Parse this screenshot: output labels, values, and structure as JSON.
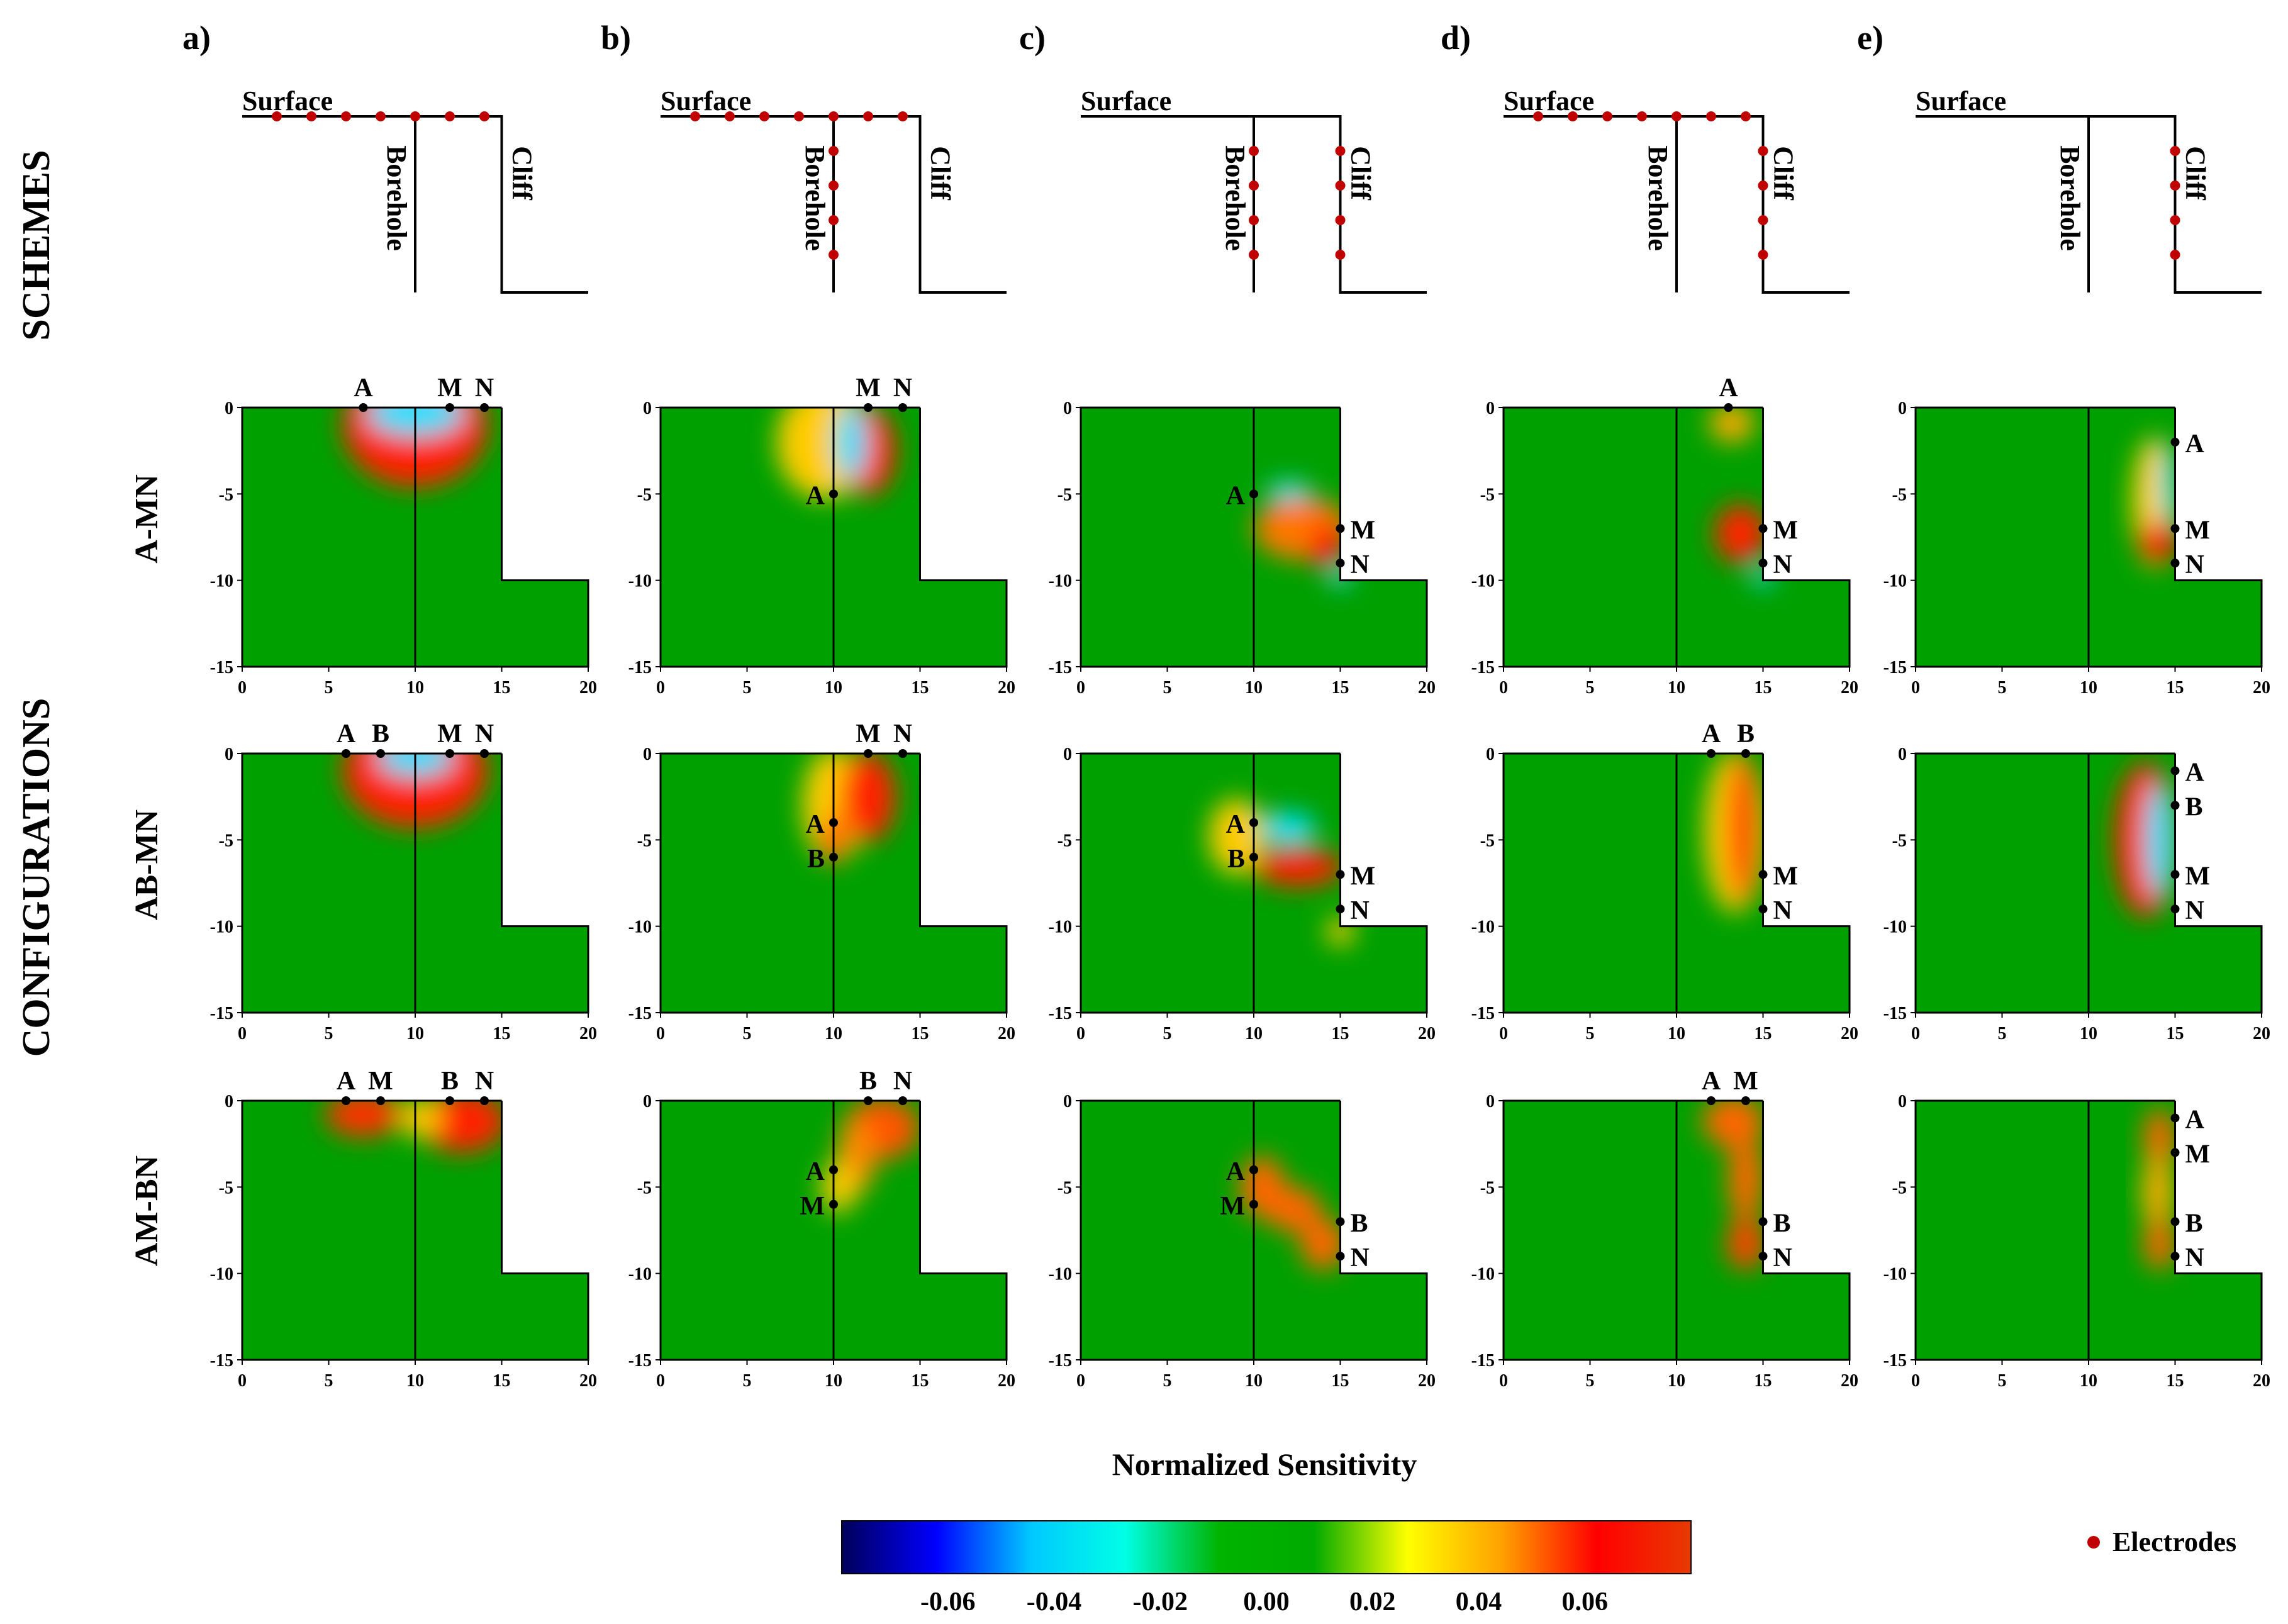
{
  "figure": {
    "panel_labels": [
      "a)",
      "b)",
      "c)",
      "d)",
      "e)"
    ],
    "row_titles": {
      "schemes": "SCHEMES",
      "configurations": "CONFIGURATIONS"
    },
    "config_rows": [
      "A-MN",
      "AB-MN",
      "AM-BN"
    ],
    "scheme_labels": {
      "surface": "Surface",
      "borehole": "Borehole",
      "cliff": "Cliff"
    },
    "schemes": [
      {
        "surface": [
          2,
          4,
          6,
          8,
          10,
          12,
          14
        ],
        "borehole": [],
        "cliff": []
      },
      {
        "surface": [
          2,
          4,
          6,
          8,
          10,
          12,
          14
        ],
        "borehole": [
          2,
          4,
          6,
          8
        ],
        "cliff": []
      },
      {
        "surface": [],
        "borehole": [
          2,
          4,
          6,
          8
        ],
        "cliff": [
          2,
          4,
          6,
          8
        ]
      },
      {
        "surface": [
          2,
          4,
          6,
          8,
          10,
          12,
          14
        ],
        "borehole": [],
        "cliff": [
          2,
          4,
          6,
          8
        ]
      },
      {
        "surface": [],
        "borehole": [],
        "cliff": [
          2,
          4,
          6,
          8
        ]
      }
    ],
    "colorbar": {
      "title": "Normalized Sensitivity",
      "ticks": [
        "-0.06",
        "-0.04",
        "-0.02",
        "0.00",
        "0.02",
        "0.04",
        "0.06"
      ],
      "colors": [
        "#00005a",
        "#0000ff",
        "#00c8ff",
        "#00ffe6",
        "#00b400",
        "#00aa00",
        "#ffff00",
        "#ffa000",
        "#ff0000",
        "#e83a00"
      ]
    },
    "legend": {
      "label": "Electrodes",
      "color": "#c00000"
    },
    "colors": {
      "background": "#00a000",
      "electrode": "#c00000",
      "line": "#000000"
    }
  },
  "chart_data": {
    "type": "heatmap",
    "title": "Normalized Sensitivity",
    "xlim": [
      0,
      20
    ],
    "ylim": [
      -15,
      0
    ],
    "xticks": [
      "0",
      "5",
      "10",
      "15",
      "20"
    ],
    "yticks": [
      "0",
      "-5",
      "-10",
      "-15"
    ],
    "panels": [
      {
        "row": "A-MN",
        "col": "a",
        "borehole_x": 10,
        "electrodes": [
          {
            "name": "A",
            "x": 7,
            "y": 0
          },
          {
            "name": "M",
            "x": 12,
            "y": 0
          },
          {
            "name": "N",
            "x": 14,
            "y": 0
          }
        ],
        "features": [
          {
            "cx": 10,
            "cy": -1,
            "rx": 4.2,
            "ry": 3.6,
            "color": "#ff2200"
          },
          {
            "cx": 10,
            "cy": -0.3,
            "rx": 2.8,
            "ry": 1.3,
            "color": "#00e0ff"
          }
        ]
      },
      {
        "row": "A-MN",
        "col": "b",
        "borehole_x": 10,
        "electrodes": [
          {
            "name": "A",
            "x": 10,
            "y": -5
          },
          {
            "name": "M",
            "x": 12,
            "y": 0
          },
          {
            "name": "N",
            "x": 14,
            "y": 0
          }
        ],
        "features": [
          {
            "cx": 9.5,
            "cy": -2,
            "rx": 2.8,
            "ry": 3.3,
            "color": "#ffcc00"
          },
          {
            "cx": 12,
            "cy": -2.5,
            "rx": 1.6,
            "ry": 2.6,
            "color": "#ff2200"
          },
          {
            "cx": 11,
            "cy": -2,
            "rx": 0.9,
            "ry": 2.2,
            "color": "#00e0ff"
          }
        ]
      },
      {
        "row": "A-MN",
        "col": "c",
        "borehole_x": 10,
        "electrodes": [
          {
            "name": "A",
            "x": 10,
            "y": -5
          },
          {
            "name": "M",
            "x": 15,
            "y": -7
          },
          {
            "name": "N",
            "x": 15,
            "y": -9
          }
        ],
        "features": [
          {
            "cx": 12.8,
            "cy": -7,
            "rx": 2.8,
            "ry": 1.8,
            "color": "#ff7700"
          },
          {
            "cx": 14.2,
            "cy": -8,
            "rx": 0.9,
            "ry": 1.3,
            "color": "#ff0000"
          },
          {
            "cx": 12,
            "cy": -4.8,
            "rx": 1.3,
            "ry": 0.5,
            "color": "#00e0ff"
          },
          {
            "cx": 15,
            "cy": -9.8,
            "rx": 0.6,
            "ry": 0.6,
            "color": "#00e0ff"
          }
        ]
      },
      {
        "row": "A-MN",
        "col": "d",
        "borehole_x": 10,
        "electrodes": [
          {
            "name": "A",
            "x": 13,
            "y": 0
          },
          {
            "name": "M",
            "x": 15,
            "y": -7
          },
          {
            "name": "N",
            "x": 15,
            "y": -9
          }
        ],
        "features": [
          {
            "cx": 13.2,
            "cy": -0.9,
            "rx": 1.3,
            "ry": 1.1,
            "color": "#ffaa00"
          },
          {
            "cx": 13.7,
            "cy": -7.3,
            "rx": 1.5,
            "ry": 1.7,
            "color": "#ff2200"
          },
          {
            "cx": 15,
            "cy": -9.8,
            "rx": 0.6,
            "ry": 0.6,
            "color": "#00e0ff"
          }
        ]
      },
      {
        "row": "A-MN",
        "col": "e",
        "borehole_x": 10,
        "electrodes": [
          {
            "name": "A",
            "x": 15,
            "y": -2
          },
          {
            "name": "M",
            "x": 15,
            "y": -7
          },
          {
            "name": "N",
            "x": 15,
            "y": -9
          }
        ],
        "features": [
          {
            "cx": 13.8,
            "cy": -5.5,
            "rx": 1.3,
            "ry": 3.8,
            "color": "#ffcc00"
          },
          {
            "cx": 14,
            "cy": -7.8,
            "rx": 1.1,
            "ry": 1.2,
            "color": "#ff0000"
          },
          {
            "cx": 14.6,
            "cy": -4.5,
            "rx": 0.4,
            "ry": 2.3,
            "color": "#00e0ff"
          }
        ]
      },
      {
        "row": "AB-MN",
        "col": "a",
        "borehole_x": 10,
        "electrodes": [
          {
            "name": "A",
            "x": 6,
            "y": 0
          },
          {
            "name": "B",
            "x": 8,
            "y": 0
          },
          {
            "name": "M",
            "x": 12,
            "y": 0
          },
          {
            "name": "N",
            "x": 14,
            "y": 0
          }
        ],
        "features": [
          {
            "cx": 10,
            "cy": -1,
            "rx": 4.2,
            "ry": 3.3,
            "color": "#ff2200"
          },
          {
            "cx": 10,
            "cy": -0.2,
            "rx": 2.2,
            "ry": 1.1,
            "color": "#00e0ff"
          }
        ]
      },
      {
        "row": "AB-MN",
        "col": "b",
        "borehole_x": 10,
        "electrodes": [
          {
            "name": "A",
            "x": 10,
            "y": -4
          },
          {
            "name": "B",
            "x": 10,
            "y": -6
          },
          {
            "name": "M",
            "x": 12,
            "y": 0
          },
          {
            "name": "N",
            "x": 14,
            "y": 0
          }
        ],
        "features": [
          {
            "cx": 10,
            "cy": -3,
            "rx": 1.8,
            "ry": 3.3,
            "color": "#ffcc00"
          },
          {
            "cx": 12,
            "cy": -2.5,
            "rx": 1.6,
            "ry": 2.6,
            "color": "#ff2200"
          },
          {
            "cx": 10,
            "cy": -5,
            "rx": 0.6,
            "ry": 1.4,
            "color": "#ff0000"
          }
        ]
      },
      {
        "row": "AB-MN",
        "col": "c",
        "borehole_x": 10,
        "electrodes": [
          {
            "name": "A",
            "x": 10,
            "y": -4
          },
          {
            "name": "B",
            "x": 10,
            "y": -6
          },
          {
            "name": "M",
            "x": 15,
            "y": -7
          },
          {
            "name": "N",
            "x": 15,
            "y": -9
          }
        ],
        "features": [
          {
            "cx": 9,
            "cy": -4.8,
            "rx": 1.6,
            "ry": 2.2,
            "color": "#ffcc00"
          },
          {
            "cx": 12.6,
            "cy": -6.6,
            "rx": 2.6,
            "ry": 1.1,
            "color": "#ff2200"
          },
          {
            "cx": 12,
            "cy": -4.3,
            "rx": 1.6,
            "ry": 0.9,
            "color": "#00e0ff"
          },
          {
            "cx": 15,
            "cy": -10.3,
            "rx": 0.8,
            "ry": 0.8,
            "color": "#ffcc00"
          }
        ]
      },
      {
        "row": "AB-MN",
        "col": "d",
        "borehole_x": 10,
        "electrodes": [
          {
            "name": "A",
            "x": 12,
            "y": 0
          },
          {
            "name": "B",
            "x": 14,
            "y": 0
          },
          {
            "name": "M",
            "x": 15,
            "y": -7
          },
          {
            "name": "N",
            "x": 15,
            "y": -9
          }
        ],
        "features": [
          {
            "cx": 13.4,
            "cy": -4.5,
            "rx": 1.8,
            "ry": 4.7,
            "color": "#ffcc00"
          },
          {
            "cx": 13.8,
            "cy": -4.3,
            "rx": 0.8,
            "ry": 4.3,
            "color": "#ff2200"
          }
        ]
      },
      {
        "row": "AB-MN",
        "col": "e",
        "borehole_x": 10,
        "electrodes": [
          {
            "name": "A",
            "x": 15,
            "y": -1
          },
          {
            "name": "B",
            "x": 15,
            "y": -3
          },
          {
            "name": "M",
            "x": 15,
            "y": -7
          },
          {
            "name": "N",
            "x": 15,
            "y": -9
          }
        ],
        "features": [
          {
            "cx": 13.3,
            "cy": -5,
            "rx": 1.8,
            "ry": 4.5,
            "color": "#ff2200"
          },
          {
            "cx": 14.1,
            "cy": -5,
            "rx": 0.8,
            "ry": 3.3,
            "color": "#00e0ff"
          }
        ]
      },
      {
        "row": "AM-BN",
        "col": "a",
        "borehole_x": 10,
        "electrodes": [
          {
            "name": "A",
            "x": 6,
            "y": 0
          },
          {
            "name": "M",
            "x": 8,
            "y": 0
          },
          {
            "name": "B",
            "x": 12,
            "y": 0
          },
          {
            "name": "N",
            "x": 14,
            "y": 0
          }
        ],
        "features": [
          {
            "cx": 7,
            "cy": -0.8,
            "rx": 2.2,
            "ry": 1.3,
            "color": "#ff3300"
          },
          {
            "cx": 12.7,
            "cy": -1.2,
            "rx": 2.6,
            "ry": 1.8,
            "color": "#ff2200"
          },
          {
            "cx": 10.3,
            "cy": -1,
            "rx": 1.2,
            "ry": 1.1,
            "color": "#ffcc00"
          }
        ]
      },
      {
        "row": "AM-BN",
        "col": "b",
        "borehole_x": 10,
        "electrodes": [
          {
            "name": "A",
            "x": 10,
            "y": -4
          },
          {
            "name": "M",
            "x": 10,
            "y": -6
          },
          {
            "name": "B",
            "x": 12,
            "y": 0
          },
          {
            "name": "N",
            "x": 14,
            "y": 0
          }
        ],
        "features": [
          {
            "cx": 12.8,
            "cy": -1.6,
            "rx": 2.2,
            "ry": 1.8,
            "color": "#ff5500"
          },
          {
            "cx": 11.3,
            "cy": -3.2,
            "rx": 1.1,
            "ry": 2.2,
            "color": "#ff8800"
          },
          {
            "cx": 10.3,
            "cy": -5,
            "rx": 1,
            "ry": 1.5,
            "color": "#ffcc00"
          }
        ]
      },
      {
        "row": "AM-BN",
        "col": "c",
        "borehole_x": 10,
        "electrodes": [
          {
            "name": "A",
            "x": 10,
            "y": -4
          },
          {
            "name": "M",
            "x": 10,
            "y": -6
          },
          {
            "name": "B",
            "x": 15,
            "y": -7
          },
          {
            "name": "N",
            "x": 15,
            "y": -9
          }
        ],
        "features": [
          {
            "cx": 10.5,
            "cy": -5,
            "rx": 1.3,
            "ry": 1.8,
            "color": "#ff6600"
          },
          {
            "cx": 12.3,
            "cy": -6.3,
            "rx": 1.6,
            "ry": 1.3,
            "color": "#ff6600"
          },
          {
            "cx": 14,
            "cy": -8.3,
            "rx": 1.3,
            "ry": 1.5,
            "color": "#ff6600"
          }
        ]
      },
      {
        "row": "AM-BN",
        "col": "d",
        "borehole_x": 10,
        "electrodes": [
          {
            "name": "A",
            "x": 12,
            "y": 0
          },
          {
            "name": "M",
            "x": 14,
            "y": 0
          },
          {
            "name": "B",
            "x": 15,
            "y": -7
          },
          {
            "name": "N",
            "x": 15,
            "y": -9
          }
        ],
        "features": [
          {
            "cx": 13.3,
            "cy": -1.2,
            "rx": 1.8,
            "ry": 1.5,
            "color": "#ff6600"
          },
          {
            "cx": 14,
            "cy": -4.5,
            "rx": 1,
            "ry": 2.6,
            "color": "#ff6600"
          },
          {
            "cx": 14,
            "cy": -8.3,
            "rx": 1.1,
            "ry": 1.5,
            "color": "#ff4400"
          }
        ]
      },
      {
        "row": "AM-BN",
        "col": "e",
        "borehole_x": 10,
        "electrodes": [
          {
            "name": "A",
            "x": 15,
            "y": -1
          },
          {
            "name": "M",
            "x": 15,
            "y": -3
          },
          {
            "name": "B",
            "x": 15,
            "y": -7
          },
          {
            "name": "N",
            "x": 15,
            "y": -9
          }
        ],
        "features": [
          {
            "cx": 14.1,
            "cy": -2.2,
            "rx": 0.9,
            "ry": 1.8,
            "color": "#ff6600"
          },
          {
            "cx": 14,
            "cy": -5.3,
            "rx": 0.9,
            "ry": 2.2,
            "color": "#ffaa00"
          },
          {
            "cx": 14.1,
            "cy": -8.3,
            "rx": 0.9,
            "ry": 1.5,
            "color": "#ff6600"
          }
        ]
      }
    ]
  }
}
